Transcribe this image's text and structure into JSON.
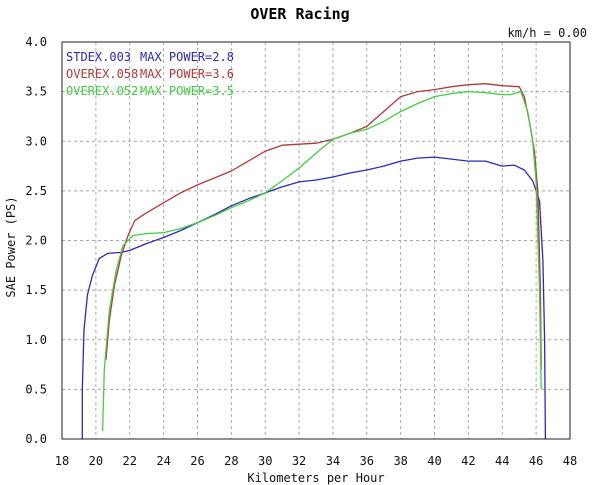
{
  "chart_data": {
    "type": "line",
    "title": "OVER Racing",
    "xlabel": "Kilometers per Hour",
    "ylabel": "SAE Power (PS)",
    "xlim": [
      18,
      48
    ],
    "ylim": [
      0,
      4.0
    ],
    "x_ticks": [
      18,
      20,
      22,
      24,
      26,
      28,
      30,
      32,
      34,
      36,
      38,
      40,
      42,
      44,
      46,
      48
    ],
    "y_ticks": [
      "0.0",
      "0.5",
      "1.0",
      "1.5",
      "2.0",
      "2.5",
      "3.0",
      "3.5",
      "4.0"
    ],
    "grid": true,
    "readout": "km/h = 0.00",
    "legend_position": "top-left",
    "series": [
      {
        "name": "STDEX.003",
        "max_power_label": "MAX POWER=2.8",
        "color": "#2b2bb0",
        "points": [
          [
            19.2,
            0.0
          ],
          [
            19.2,
            0.5
          ],
          [
            19.3,
            1.1
          ],
          [
            19.5,
            1.45
          ],
          [
            19.8,
            1.65
          ],
          [
            20.2,
            1.82
          ],
          [
            20.7,
            1.87
          ],
          [
            21.5,
            1.88
          ],
          [
            22,
            1.9
          ],
          [
            23,
            1.97
          ],
          [
            24,
            2.03
          ],
          [
            25,
            2.1
          ],
          [
            26,
            2.18
          ],
          [
            27,
            2.26
          ],
          [
            28,
            2.35
          ],
          [
            29,
            2.42
          ],
          [
            30,
            2.48
          ],
          [
            31,
            2.54
          ],
          [
            32,
            2.59
          ],
          [
            33,
            2.61
          ],
          [
            34,
            2.64
          ],
          [
            35,
            2.68
          ],
          [
            36,
            2.71
          ],
          [
            37,
            2.75
          ],
          [
            38,
            2.8
          ],
          [
            39,
            2.83
          ],
          [
            40,
            2.84
          ],
          [
            41,
            2.82
          ],
          [
            42,
            2.8
          ],
          [
            43,
            2.8
          ],
          [
            44,
            2.75
          ],
          [
            44.7,
            2.76
          ],
          [
            45.3,
            2.71
          ],
          [
            45.8,
            2.6
          ],
          [
            46.2,
            2.4
          ],
          [
            46.4,
            1.8
          ],
          [
            46.5,
            1.0
          ],
          [
            46.55,
            0.0
          ]
        ]
      },
      {
        "name": "OVEREX.058",
        "max_power_label": "MAX POWER=3.6",
        "color": "#b03a3a",
        "points": [
          [
            20.6,
            0.8
          ],
          [
            20.8,
            1.2
          ],
          [
            21.1,
            1.55
          ],
          [
            21.5,
            1.85
          ],
          [
            21.9,
            2.05
          ],
          [
            22.3,
            2.2
          ],
          [
            23,
            2.28
          ],
          [
            24,
            2.38
          ],
          [
            25,
            2.48
          ],
          [
            26,
            2.56
          ],
          [
            27,
            2.63
          ],
          [
            28,
            2.7
          ],
          [
            29,
            2.8
          ],
          [
            30,
            2.9
          ],
          [
            31,
            2.96
          ],
          [
            32,
            2.97
          ],
          [
            33,
            2.98
          ],
          [
            34,
            3.02
          ],
          [
            35,
            3.08
          ],
          [
            36,
            3.15
          ],
          [
            37,
            3.3
          ],
          [
            38,
            3.45
          ],
          [
            39,
            3.5
          ],
          [
            40,
            3.52
          ],
          [
            41,
            3.55
          ],
          [
            42,
            3.57
          ],
          [
            43,
            3.58
          ],
          [
            44,
            3.56
          ],
          [
            45,
            3.55
          ],
          [
            45.3,
            3.45
          ],
          [
            45.6,
            3.2
          ],
          [
            45.9,
            2.9
          ],
          [
            46.1,
            2.5
          ],
          [
            46.25,
            1.5
          ],
          [
            46.3,
            0.7
          ]
        ]
      },
      {
        "name": "OVEREX.052",
        "max_power_label": "MAX POWER=3.5",
        "color": "#44cc44",
        "points": [
          [
            20.4,
            0.08
          ],
          [
            20.5,
            0.7
          ],
          [
            20.8,
            1.3
          ],
          [
            21.2,
            1.7
          ],
          [
            21.6,
            1.95
          ],
          [
            22.2,
            2.05
          ],
          [
            23,
            2.07
          ],
          [
            24,
            2.08
          ],
          [
            25,
            2.12
          ],
          [
            26,
            2.18
          ],
          [
            27,
            2.25
          ],
          [
            28,
            2.33
          ],
          [
            29,
            2.4
          ],
          [
            30,
            2.48
          ],
          [
            31,
            2.6
          ],
          [
            32,
            2.73
          ],
          [
            33,
            2.88
          ],
          [
            34,
            3.02
          ],
          [
            35,
            3.08
          ],
          [
            36,
            3.12
          ],
          [
            37,
            3.2
          ],
          [
            38,
            3.3
          ],
          [
            39,
            3.38
          ],
          [
            40,
            3.45
          ],
          [
            41,
            3.48
          ],
          [
            42,
            3.5
          ],
          [
            43,
            3.49
          ],
          [
            44,
            3.47
          ],
          [
            44.5,
            3.47
          ],
          [
            45.1,
            3.5
          ],
          [
            45.5,
            3.3
          ],
          [
            45.8,
            3.0
          ],
          [
            46.0,
            2.6
          ],
          [
            46.2,
            1.5
          ],
          [
            46.3,
            0.5
          ]
        ]
      }
    ]
  }
}
